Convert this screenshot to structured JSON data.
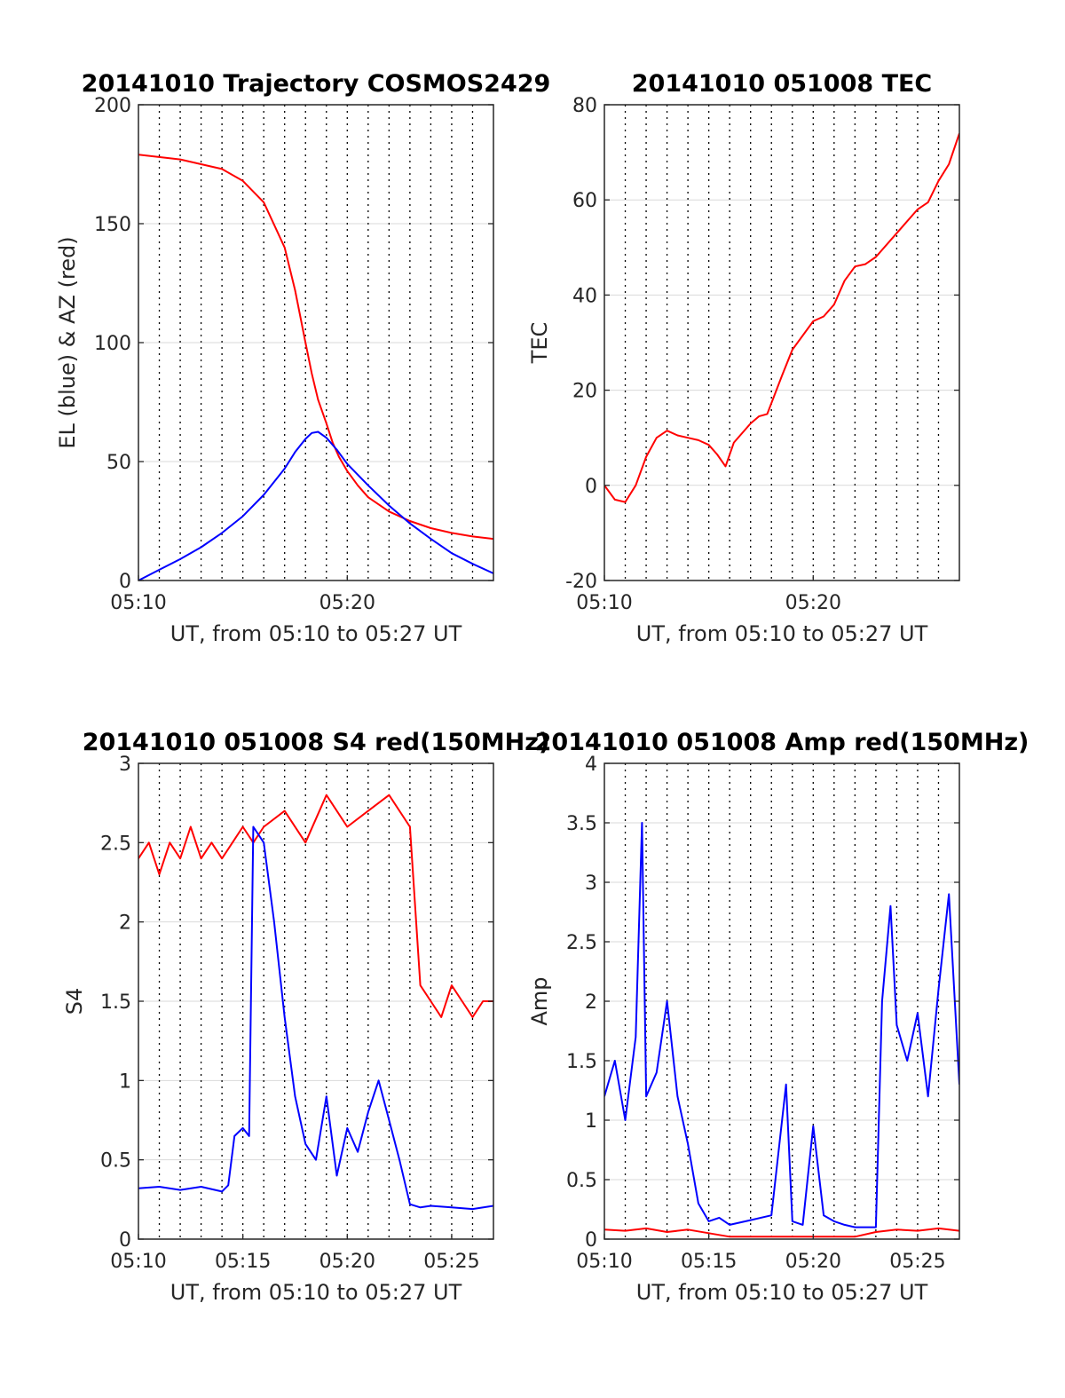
{
  "chart_data": [
    {
      "type": "line",
      "title": "20141010 Trajectory COSMOS2429",
      "xlabel": "UT, from 05:10 to 05:27 UT",
      "ylabel": "EL (blue) & AZ (red)",
      "xlim": [
        0,
        17
      ],
      "ylim": [
        0,
        200
      ],
      "xticks": [
        0,
        10
      ],
      "xticklabels": [
        "05:10",
        "05:20"
      ],
      "yticks": [
        0,
        50,
        100,
        150,
        200
      ],
      "yticklabels": [
        "0",
        "50",
        "100",
        "150",
        "200"
      ],
      "grid": "dotted vertical every 1 min, solid horizontal",
      "series": [
        {
          "color": "#ff0000",
          "x": [
            0,
            2,
            4,
            5,
            6,
            7,
            7.5,
            8,
            8.3,
            8.6,
            9,
            9.3,
            9.6,
            10,
            10.5,
            11,
            12,
            13,
            14,
            15,
            16,
            17
          ],
          "y": [
            179,
            177,
            173,
            168,
            159,
            140,
            122,
            100,
            87,
            76,
            66,
            58,
            52,
            46,
            40,
            35,
            29,
            25,
            22,
            20,
            18.5,
            17.5
          ]
        },
        {
          "color": "#0000ff",
          "x": [
            0,
            1,
            2,
            3,
            4,
            5,
            6,
            7,
            7.5,
            8,
            8.3,
            8.6,
            9,
            9.5,
            10,
            11,
            12,
            13,
            14,
            15,
            16,
            17
          ],
          "y": [
            0,
            4.5,
            9,
            14,
            20,
            27,
            36,
            47,
            54,
            59.5,
            62,
            62.5,
            60,
            55,
            49,
            40,
            31.5,
            24,
            17.5,
            11.5,
            7,
            3
          ]
        }
      ]
    },
    {
      "type": "line",
      "title": "20141010 051008 TEC",
      "xlabel": "UT, from 05:10 to 05:27 UT",
      "ylabel": "TEC",
      "xlim": [
        0,
        17
      ],
      "ylim": [
        -20,
        80
      ],
      "xticks": [
        0,
        10
      ],
      "xticklabels": [
        "05:10",
        "05:20"
      ],
      "yticks": [
        -20,
        0,
        20,
        40,
        60,
        80
      ],
      "yticklabels": [
        "-20",
        "0",
        "20",
        "40",
        "60",
        "80"
      ],
      "grid": "dotted vertical every 1 min, solid horizontal",
      "series": [
        {
          "color": "#ff0000",
          "x": [
            0,
            0.5,
            1,
            1.5,
            2,
            2.5,
            3,
            3.5,
            4,
            4.5,
            5,
            5.4,
            5.8,
            6.2,
            7,
            7.4,
            7.8,
            8.5,
            9,
            10,
            10.5,
            11,
            11.5,
            12,
            12.5,
            13,
            14,
            15,
            15.5,
            16,
            16.5,
            17
          ],
          "y": [
            0,
            -3,
            -3.5,
            0,
            6,
            10,
            11.5,
            10.5,
            10,
            9.5,
            8.5,
            6.5,
            4,
            9,
            13,
            14.5,
            15,
            23,
            28.5,
            34.5,
            35.5,
            38,
            43,
            46,
            46.5,
            48,
            53,
            58,
            59.5,
            64,
            67.5,
            74
          ]
        }
      ]
    },
    {
      "type": "line",
      "title": "20141010 051008 S4 red(150MHz)",
      "xlabel": "UT, from 05:10 to 05:27 UT",
      "ylabel": "S4",
      "xlim": [
        0,
        17
      ],
      "ylim": [
        0,
        3
      ],
      "xticks": [
        0,
        5,
        10,
        15
      ],
      "xticklabels": [
        "05:10",
        "05:15",
        "05:20",
        "05:25"
      ],
      "yticks": [
        0,
        0.5,
        1,
        1.5,
        2,
        2.5,
        3
      ],
      "yticklabels": [
        "0",
        "0.5",
        "1",
        "1.5",
        "2",
        "2.5",
        "3"
      ],
      "grid": "dotted vertical every 1 min, solid horizontal",
      "series": [
        {
          "color": "#ff0000",
          "x": [
            0,
            0.5,
            1,
            1.5,
            2,
            2.5,
            3,
            3.5,
            4,
            4.5,
            5,
            5.5,
            6,
            7,
            8,
            9,
            10,
            11,
            12,
            13,
            13.5,
            14,
            14.5,
            15,
            15.5,
            16,
            16.5,
            17
          ],
          "y": [
            2.4,
            2.5,
            2.3,
            2.5,
            2.4,
            2.6,
            2.4,
            2.5,
            2.4,
            2.5,
            2.6,
            2.5,
            2.6,
            2.7,
            2.5,
            2.8,
            2.6,
            2.7,
            2.8,
            2.6,
            1.6,
            1.5,
            1.4,
            1.6,
            1.5,
            1.4,
            1.5,
            1.5
          ]
        },
        {
          "color": "#0000ff",
          "x": [
            0,
            1,
            2,
            3,
            4,
            4.3,
            4.6,
            5,
            5.3,
            5.5,
            6,
            6.5,
            7,
            7.5,
            8,
            8.5,
            9,
            9.5,
            10,
            10.5,
            11,
            11.5,
            12,
            12.5,
            13,
            13.5,
            14,
            15,
            16,
            17
          ],
          "y": [
            0.32,
            0.33,
            0.31,
            0.33,
            0.3,
            0.34,
            0.65,
            0.7,
            0.65,
            2.6,
            2.5,
            2.0,
            1.4,
            0.9,
            0.6,
            0.5,
            0.9,
            0.4,
            0.7,
            0.55,
            0.8,
            1.0,
            0.75,
            0.5,
            0.22,
            0.2,
            0.21,
            0.2,
            0.19,
            0.21
          ]
        }
      ]
    },
    {
      "type": "line",
      "title": "20141010 051008 Amp red(150MHz)",
      "xlabel": "UT, from 05:10 to 05:27 UT",
      "ylabel": "Amp",
      "xlim": [
        0,
        17
      ],
      "ylim": [
        0,
        4
      ],
      "xticks": [
        0,
        5,
        10,
        15
      ],
      "xticklabels": [
        "05:10",
        "05:15",
        "05:20",
        "05:25"
      ],
      "yticks": [
        0,
        0.5,
        1,
        1.5,
        2,
        2.5,
        3,
        3.5,
        4
      ],
      "yticklabels": [
        "0",
        "0.5",
        "1",
        "1.5",
        "2",
        "2.5",
        "3",
        "3.5",
        "4"
      ],
      "grid": "dotted vertical every 1 min, solid horizontal",
      "series": [
        {
          "color": "#ff0000",
          "x": [
            0,
            1,
            2,
            3,
            4,
            5,
            6,
            7,
            8,
            9,
            10,
            11,
            12,
            13,
            14,
            15,
            16,
            17
          ],
          "y": [
            0.08,
            0.07,
            0.09,
            0.06,
            0.08,
            0.05,
            0.02,
            0.02,
            0.02,
            0.02,
            0.02,
            0.02,
            0.02,
            0.06,
            0.08,
            0.07,
            0.09,
            0.07
          ]
        },
        {
          "color": "#0000ff",
          "x": [
            0,
            0.5,
            1,
            1.5,
            1.8,
            2,
            2.5,
            3,
            3.5,
            4,
            4.5,
            5,
            5.5,
            6,
            7,
            8,
            8.7,
            9,
            9.5,
            10,
            10.5,
            11,
            11.5,
            12,
            13,
            13.3,
            13.7,
            14,
            14.5,
            15,
            15.5,
            16,
            16.5,
            17
          ],
          "y": [
            1.2,
            1.5,
            1.0,
            1.7,
            3.5,
            1.2,
            1.4,
            2.0,
            1.2,
            0.8,
            0.3,
            0.15,
            0.18,
            0.12,
            0.16,
            0.2,
            1.3,
            0.15,
            0.12,
            0.95,
            0.2,
            0.15,
            0.12,
            0.1,
            0.1,
            2.0,
            2.8,
            1.8,
            1.5,
            1.9,
            1.2,
            2.1,
            2.9,
            1.3
          ]
        }
      ]
    }
  ]
}
